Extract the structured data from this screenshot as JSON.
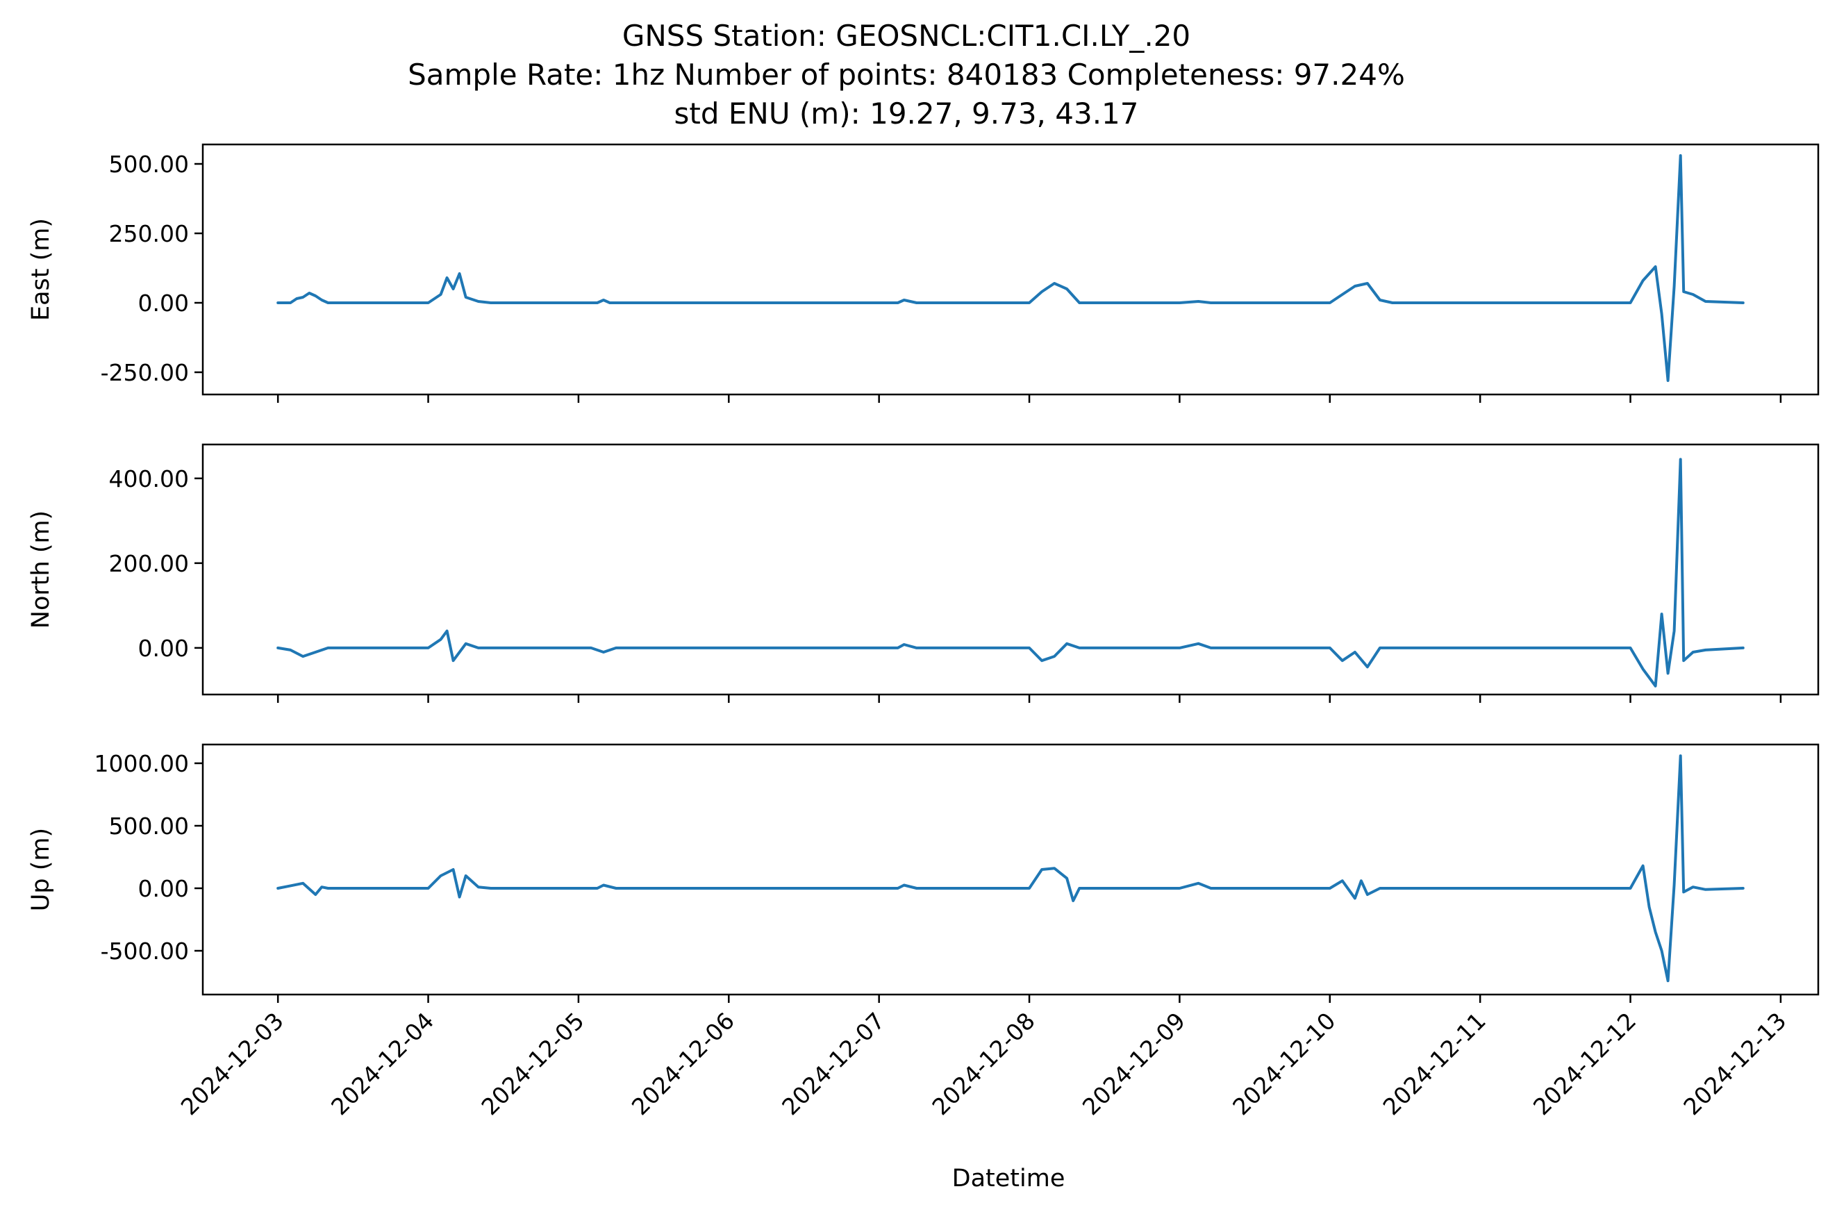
{
  "title": {
    "line1": "GNSS Station: GEOSNCL:CIT1.CI.LY_.20",
    "line2": "Sample Rate: 1hz   Number of points: 840183    Completeness:  97.24%",
    "line3": "std ENU (m):  19.27, 9.73, 43.17"
  },
  "colors": {
    "series": "#1f77b4"
  },
  "chart_data": {
    "type": "line",
    "xlabel": "Datetime",
    "x_ticks": [
      "2024-12-03",
      "2024-12-04",
      "2024-12-05",
      "2024-12-06",
      "2024-12-07",
      "2024-12-08",
      "2024-12-09",
      "2024-12-10",
      "2024-12-11",
      "2024-12-12",
      "2024-12-13"
    ],
    "xlim": [
      "2024-12-02 12:00",
      "2024-12-13 06:00"
    ],
    "panels": [
      {
        "name": "east",
        "ylabel": "East (m)",
        "ylim": [
          -330,
          570
        ],
        "y_ticks": [
          500,
          250,
          0,
          -250
        ],
        "y_tick_labels": [
          "500.00",
          "250.00",
          "0.00",
          "-250.00"
        ],
        "points": [
          [
            "2024-12-03 00:00",
            0
          ],
          [
            "2024-12-03 02:00",
            0
          ],
          [
            "2024-12-03 03:00",
            15
          ],
          [
            "2024-12-03 04:00",
            20
          ],
          [
            "2024-12-03 05:00",
            35
          ],
          [
            "2024-12-03 06:00",
            25
          ],
          [
            "2024-12-03 07:00",
            10
          ],
          [
            "2024-12-03 08:00",
            0
          ],
          [
            "2024-12-04 00:00",
            0
          ],
          [
            "2024-12-04 02:00",
            30
          ],
          [
            "2024-12-04 03:00",
            90
          ],
          [
            "2024-12-04 04:00",
            50
          ],
          [
            "2024-12-04 05:00",
            105
          ],
          [
            "2024-12-04 06:00",
            20
          ],
          [
            "2024-12-04 08:00",
            5
          ],
          [
            "2024-12-04 10:00",
            0
          ],
          [
            "2024-12-05 03:00",
            0
          ],
          [
            "2024-12-05 04:00",
            10
          ],
          [
            "2024-12-05 05:00",
            0
          ],
          [
            "2024-12-06 00:00",
            0
          ],
          [
            "2024-12-07 03:00",
            0
          ],
          [
            "2024-12-07 04:00",
            10
          ],
          [
            "2024-12-07 06:00",
            0
          ],
          [
            "2024-12-08 00:00",
            0
          ],
          [
            "2024-12-08 02:00",
            40
          ],
          [
            "2024-12-08 04:00",
            70
          ],
          [
            "2024-12-08 06:00",
            50
          ],
          [
            "2024-12-08 08:00",
            0
          ],
          [
            "2024-12-09 00:00",
            0
          ],
          [
            "2024-12-09 03:00",
            5
          ],
          [
            "2024-12-09 05:00",
            0
          ],
          [
            "2024-12-10 00:00",
            0
          ],
          [
            "2024-12-10 02:00",
            30
          ],
          [
            "2024-12-10 04:00",
            60
          ],
          [
            "2024-12-10 06:00",
            70
          ],
          [
            "2024-12-10 08:00",
            10
          ],
          [
            "2024-12-10 10:00",
            0
          ],
          [
            "2024-12-12 00:00",
            0
          ],
          [
            "2024-12-12 02:00",
            80
          ],
          [
            "2024-12-12 04:00",
            130
          ],
          [
            "2024-12-12 05:00",
            -40
          ],
          [
            "2024-12-12 06:00",
            -280
          ],
          [
            "2024-12-12 07:00",
            60
          ],
          [
            "2024-12-12 08:00",
            530
          ],
          [
            "2024-12-12 08:30",
            40
          ],
          [
            "2024-12-12 10:00",
            30
          ],
          [
            "2024-12-12 12:00",
            5
          ],
          [
            "2024-12-12 18:00",
            0
          ]
        ]
      },
      {
        "name": "north",
        "ylabel": "North (m)",
        "ylim": [
          -110,
          480
        ],
        "y_ticks": [
          400,
          200,
          0
        ],
        "y_tick_labels": [
          "400.00",
          "200.00",
          "0.00"
        ],
        "points": [
          [
            "2024-12-03 00:00",
            0
          ],
          [
            "2024-12-03 02:00",
            -5
          ],
          [
            "2024-12-03 04:00",
            -20
          ],
          [
            "2024-12-03 06:00",
            -10
          ],
          [
            "2024-12-03 08:00",
            0
          ],
          [
            "2024-12-04 00:00",
            0
          ],
          [
            "2024-12-04 02:00",
            20
          ],
          [
            "2024-12-04 03:00",
            40
          ],
          [
            "2024-12-04 04:00",
            -30
          ],
          [
            "2024-12-04 06:00",
            10
          ],
          [
            "2024-12-04 08:00",
            0
          ],
          [
            "2024-12-05 02:00",
            0
          ],
          [
            "2024-12-05 04:00",
            -10
          ],
          [
            "2024-12-05 06:00",
            0
          ],
          [
            "2024-12-07 03:00",
            0
          ],
          [
            "2024-12-07 04:00",
            8
          ],
          [
            "2024-12-07 06:00",
            0
          ],
          [
            "2024-12-08 00:00",
            0
          ],
          [
            "2024-12-08 02:00",
            -30
          ],
          [
            "2024-12-08 04:00",
            -20
          ],
          [
            "2024-12-08 06:00",
            10
          ],
          [
            "2024-12-08 08:00",
            0
          ],
          [
            "2024-12-09 00:00",
            0
          ],
          [
            "2024-12-09 03:00",
            10
          ],
          [
            "2024-12-09 05:00",
            0
          ],
          [
            "2024-12-10 00:00",
            0
          ],
          [
            "2024-12-10 02:00",
            -30
          ],
          [
            "2024-12-10 04:00",
            -10
          ],
          [
            "2024-12-10 06:00",
            -45
          ],
          [
            "2024-12-10 08:00",
            0
          ],
          [
            "2024-12-12 00:00",
            0
          ],
          [
            "2024-12-12 02:00",
            -50
          ],
          [
            "2024-12-12 04:00",
            -90
          ],
          [
            "2024-12-12 05:00",
            80
          ],
          [
            "2024-12-12 06:00",
            -60
          ],
          [
            "2024-12-12 07:00",
            40
          ],
          [
            "2024-12-12 08:00",
            445
          ],
          [
            "2024-12-12 08:30",
            -30
          ],
          [
            "2024-12-12 10:00",
            -10
          ],
          [
            "2024-12-12 12:00",
            -5
          ],
          [
            "2024-12-12 18:00",
            0
          ]
        ]
      },
      {
        "name": "up",
        "ylabel": "Up (m)",
        "ylim": [
          -850,
          1150
        ],
        "y_ticks": [
          1000,
          500,
          0,
          -500
        ],
        "y_tick_labels": [
          "1000.00",
          "500.00",
          "0.00",
          "-500.00"
        ],
        "points": [
          [
            "2024-12-03 00:00",
            0
          ],
          [
            "2024-12-03 02:00",
            20
          ],
          [
            "2024-12-03 04:00",
            40
          ],
          [
            "2024-12-03 06:00",
            -50
          ],
          [
            "2024-12-03 07:00",
            10
          ],
          [
            "2024-12-03 08:00",
            0
          ],
          [
            "2024-12-04 00:00",
            0
          ],
          [
            "2024-12-04 02:00",
            100
          ],
          [
            "2024-12-04 04:00",
            150
          ],
          [
            "2024-12-04 05:00",
            -70
          ],
          [
            "2024-12-04 06:00",
            100
          ],
          [
            "2024-12-04 08:00",
            10
          ],
          [
            "2024-12-04 10:00",
            0
          ],
          [
            "2024-12-05 03:00",
            0
          ],
          [
            "2024-12-05 04:00",
            25
          ],
          [
            "2024-12-05 06:00",
            0
          ],
          [
            "2024-12-07 03:00",
            0
          ],
          [
            "2024-12-07 04:00",
            25
          ],
          [
            "2024-12-07 06:00",
            0
          ],
          [
            "2024-12-08 00:00",
            0
          ],
          [
            "2024-12-08 02:00",
            150
          ],
          [
            "2024-12-08 04:00",
            160
          ],
          [
            "2024-12-08 06:00",
            80
          ],
          [
            "2024-12-08 07:00",
            -100
          ],
          [
            "2024-12-08 08:00",
            0
          ],
          [
            "2024-12-09 00:00",
            0
          ],
          [
            "2024-12-09 03:00",
            40
          ],
          [
            "2024-12-09 05:00",
            0
          ],
          [
            "2024-12-10 00:00",
            0
          ],
          [
            "2024-12-10 02:00",
            60
          ],
          [
            "2024-12-10 04:00",
            -80
          ],
          [
            "2024-12-10 05:00",
            60
          ],
          [
            "2024-12-10 06:00",
            -50
          ],
          [
            "2024-12-10 08:00",
            0
          ],
          [
            "2024-12-12 00:00",
            0
          ],
          [
            "2024-12-12 02:00",
            180
          ],
          [
            "2024-12-12 03:00",
            -150
          ],
          [
            "2024-12-12 04:00",
            -350
          ],
          [
            "2024-12-12 05:00",
            -500
          ],
          [
            "2024-12-12 06:00",
            -740
          ],
          [
            "2024-12-12 07:00",
            30
          ],
          [
            "2024-12-12 08:00",
            1060
          ],
          [
            "2024-12-12 08:30",
            -30
          ],
          [
            "2024-12-12 10:00",
            10
          ],
          [
            "2024-12-12 12:00",
            -10
          ],
          [
            "2024-12-12 18:00",
            0
          ]
        ]
      }
    ]
  }
}
